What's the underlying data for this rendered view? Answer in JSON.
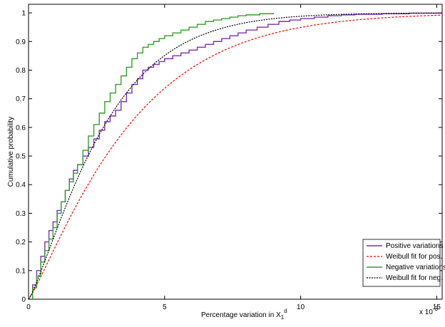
{
  "chart_data": {
    "type": "line",
    "xlabel": "Percentage variation in X",
    "xlabel_sub": "1",
    "xlabel_sup": "d",
    "ylabel": "Cumulative probability",
    "x_multiplier": "x 10",
    "x_multiplier_exp": "-3",
    "xlim": [
      0,
      15.2
    ],
    "ylim": [
      0,
      1.03
    ],
    "x_ticks": [
      0,
      5,
      10,
      15
    ],
    "x_tick_labels": [
      "0",
      "5",
      "10",
      "15"
    ],
    "y_ticks": [
      0,
      0.1,
      0.2,
      0.3,
      0.4,
      0.5,
      0.6,
      0.7,
      0.8,
      0.9,
      1
    ],
    "y_tick_labels": [
      "0",
      "0.1",
      "0.2",
      "0.3",
      "0.4",
      "0.5",
      "0.6",
      "0.7",
      "0.8",
      "0.9",
      "1"
    ],
    "grid": false,
    "legend_position": "bottom-right",
    "series": [
      {
        "name": "Positive variations",
        "color": "#7b2fbe",
        "style": "solid",
        "step": true,
        "x": [
          0,
          0.15,
          0.3,
          0.45,
          0.6,
          0.75,
          0.9,
          1.05,
          1.2,
          1.35,
          1.5,
          1.65,
          1.8,
          2.0,
          2.2,
          2.4,
          2.6,
          2.8,
          3.0,
          3.2,
          3.4,
          3.6,
          3.8,
          4.0,
          4.2,
          4.4,
          4.6,
          4.8,
          5.0,
          5.3,
          5.6,
          5.9,
          6.2,
          6.5,
          6.8,
          7.1,
          7.4,
          7.7,
          8.0,
          8.4,
          8.8,
          9.2,
          9.6,
          10.0,
          10.5,
          11.0,
          11.5,
          12.0,
          13.0,
          14.0,
          15.2
        ],
        "y": [
          0,
          0.05,
          0.1,
          0.15,
          0.2,
          0.24,
          0.27,
          0.31,
          0.34,
          0.38,
          0.42,
          0.45,
          0.47,
          0.5,
          0.53,
          0.56,
          0.59,
          0.62,
          0.64,
          0.66,
          0.69,
          0.72,
          0.75,
          0.77,
          0.8,
          0.81,
          0.82,
          0.83,
          0.84,
          0.85,
          0.86,
          0.87,
          0.88,
          0.89,
          0.9,
          0.91,
          0.92,
          0.93,
          0.94,
          0.95,
          0.96,
          0.97,
          0.975,
          0.98,
          0.985,
          0.99,
          0.993,
          0.995,
          0.997,
          0.999,
          1.0
        ]
      },
      {
        "name": "Weibull fit for pos.",
        "color": "#ff0000",
        "style": "dashed",
        "fit": "weibull",
        "fit_scale": 3.9,
        "fit_shape": 1.16,
        "xmax": 15.2
      },
      {
        "name": "Negative variations",
        "color": "#33a02c",
        "style": "solid",
        "step": true,
        "x": [
          0,
          0.15,
          0.3,
          0.45,
          0.6,
          0.75,
          0.9,
          1.05,
          1.2,
          1.35,
          1.5,
          1.65,
          1.8,
          2.0,
          2.2,
          2.4,
          2.6,
          2.8,
          3.0,
          3.2,
          3.4,
          3.6,
          3.8,
          4.0,
          4.2,
          4.4,
          4.6,
          4.8,
          5.0,
          5.3,
          5.6,
          5.9,
          6.2,
          6.5,
          6.8,
          7.1,
          7.4,
          7.7,
          8.0,
          8.5,
          9.0
        ],
        "y": [
          0,
          0.04,
          0.08,
          0.13,
          0.17,
          0.21,
          0.25,
          0.3,
          0.34,
          0.38,
          0.41,
          0.44,
          0.47,
          0.52,
          0.57,
          0.61,
          0.65,
          0.69,
          0.72,
          0.75,
          0.78,
          0.81,
          0.84,
          0.86,
          0.88,
          0.89,
          0.9,
          0.91,
          0.92,
          0.93,
          0.94,
          0.95,
          0.96,
          0.97,
          0.975,
          0.98,
          0.985,
          0.99,
          0.993,
          0.997,
          1.0
        ]
      },
      {
        "name": "Weibull fit for neg.",
        "color": "#000000",
        "style": "dotted",
        "fit": "weibull",
        "fit_scale": 2.95,
        "fit_shape": 1.22,
        "xmax": 15.2
      }
    ]
  }
}
